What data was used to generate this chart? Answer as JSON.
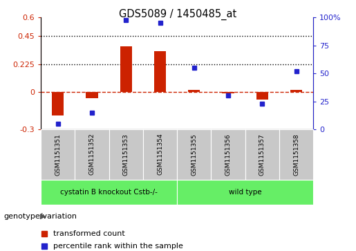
{
  "title": "GDS5089 / 1450485_at",
  "samples": [
    "GSM1151351",
    "GSM1151352",
    "GSM1151353",
    "GSM1151354",
    "GSM1151355",
    "GSM1151356",
    "GSM1151357",
    "GSM1151358"
  ],
  "red_bars": [
    -0.19,
    -0.05,
    0.37,
    0.33,
    0.02,
    -0.01,
    -0.06,
    0.02
  ],
  "blue_dots": [
    5,
    15,
    98,
    95,
    55,
    30,
    23,
    52
  ],
  "bar_color": "#CC2200",
  "dot_color": "#2222CC",
  "ylim_left": [
    -0.3,
    0.6
  ],
  "ylim_right": [
    0,
    100
  ],
  "yticks_left": [
    -0.3,
    0.0,
    0.225,
    0.45,
    0.6
  ],
  "ytick_labels_left": [
    "-0.3",
    "0",
    "0.225",
    "0.45",
    "0.6"
  ],
  "yticks_right": [
    0,
    25,
    50,
    75,
    100
  ],
  "ytick_labels_right": [
    "0",
    "25",
    "50",
    "75",
    "100%"
  ],
  "hlines": [
    0.225,
    0.45
  ],
  "group1_label": "cystatin B knockout Cstb-/-",
  "group2_label": "wild type",
  "group1_count": 4,
  "group2_count": 4,
  "group_color": "#66EE66",
  "genotype_label": "genotype/variation",
  "legend_red": "transformed count",
  "legend_blue": "percentile rank within the sample",
  "bg_color": "#FFFFFF",
  "tick_label_area_color": "#C8C8C8",
  "bar_width": 0.35
}
